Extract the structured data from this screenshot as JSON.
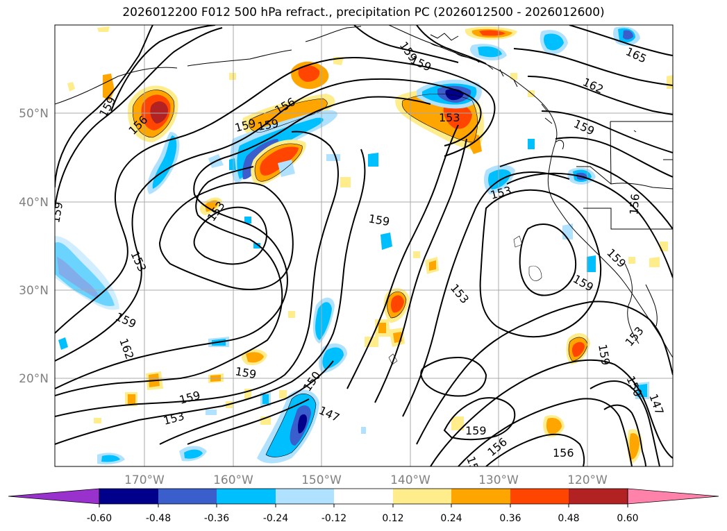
{
  "title": "2026012200 F012 500 hPa refract., precipitation PC (2026012500 - 2026012600)",
  "lat_labels": [
    "50°N",
    "40°N",
    "30°N",
    "20°N"
  ],
  "lon_labels": [
    "170°W",
    "160°W",
    "150°W",
    "140°W",
    "130°W",
    "120°W"
  ],
  "contour_labels": [
    "159",
    "156",
    "159",
    "156",
    "159",
    "153",
    "162",
    "165",
    "159",
    "153",
    "156",
    "159",
    "153",
    "159",
    "153",
    "159",
    "159",
    "153",
    "159",
    "162",
    "159",
    "150",
    "147",
    "153",
    "159",
    "156",
    "156",
    "159",
    "150",
    "147",
    "153",
    "15",
    "159",
    "159",
    "159"
  ],
  "colorbar": {
    "ticks": [
      "-0.60",
      "-0.48",
      "-0.36",
      "-0.24",
      "-0.12",
      "0.12",
      "0.24",
      "0.36",
      "0.48",
      "0.60"
    ],
    "colors": [
      "#9932cc",
      "#00008b",
      "#3a5fcd",
      "#00bfff",
      "#b0e2ff",
      "#ffffff",
      "#ffec8b",
      "#ffa500",
      "#ff4500",
      "#b22222",
      "#ff82ab"
    ]
  },
  "fill_colors": {
    "neg_light": "#b0e2ff",
    "neg_mid": "#00bfff",
    "neg_strong": "#3a5fcd",
    "neg_max": "#00008b",
    "pos_light": "#ffec8b",
    "pos_mid": "#ffa500",
    "pos_strong": "#ff4500",
    "pos_max": "#b22222"
  }
}
